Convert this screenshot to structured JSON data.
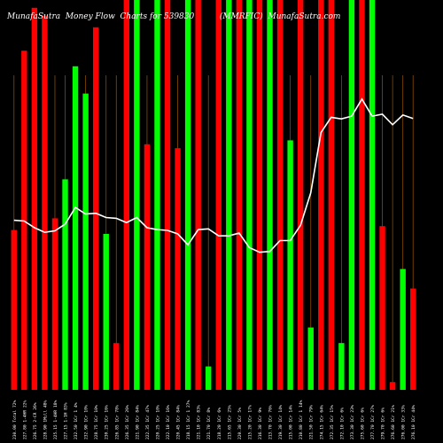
{
  "chart_data": {
    "type": "bar",
    "title_left": "MunafaSutra  Money Flow  Charts for 539830",
    "title_right": "(MMRFIC)  MunafaSutra.com",
    "colors": {
      "up": "#00ff00",
      "down": "#ff0000",
      "grid": "#8a4a00",
      "line": "#ffffff",
      "label": "#ffffff"
    },
    "y_range": [
      0,
      100
    ],
    "categories": [
      "230.00 Total 72%",
      "227.80 1-4HR 22%",
      "226.75 2-CR 26%",
      "228.90 1Mill 48%",
      "225.15 1-4HR 18%",
      "227.15 1-1H 83%",
      "232.50 1Cr 1 4%",
      "232.90 1Cr 10%",
      "228.75 1Cr 10%",
      "230.25 1Cr 16%",
      "226.85 1Cr 78%",
      "226.35 1Cr 26%",
      "221.90 1Cr 84%",
      "222.35 1Cr 47%",
      "220.25 1Cr 10%",
      "222.10 1Cr 16%",
      "220.45 1Cr 84%",
      "218.15 1Cr 1 27%",
      "221.10 1Cr 83%",
      "221.70 1Cr 8%",
      "218.20 1Cr 6%",
      "215.65 1Cr 25%",
      "220.30 1Cr 5%",
      "215.20 1Cr 17%",
      "216.30 1Cr 9%",
      "213.70 1Cr 76%",
      "219.30 1Cr 14%",
      "215.00 1Cr 14%",
      "210.80 1Cr 1 14%",
      "221.50 1Cr 79%",
      "274.15 1Cr 64%",
      "272.35 1Cr 15%",
      "272.10 1Cr 6%",
      "273.30 1Cr 23%",
      "275.60 1Cr 6%",
      "277.70 1Cr 27%",
      "279.70 1Cr 6%",
      "276.60 1Cr 21%",
      "276.00 1Cr 33%",
      "276.10 1Cr 44%"
    ],
    "bars": [
      {
        "value": 41,
        "dir": "down"
      },
      {
        "value": 87,
        "dir": "down"
      },
      {
        "value": 98,
        "dir": "down"
      },
      {
        "value": 96,
        "dir": "down"
      },
      {
        "value": 44,
        "dir": "down"
      },
      {
        "value": 54,
        "dir": "up"
      },
      {
        "value": 83,
        "dir": "up"
      },
      {
        "value": 76,
        "dir": "up"
      },
      {
        "value": 93,
        "dir": "down"
      },
      {
        "value": 40,
        "dir": "up"
      },
      {
        "value": 12,
        "dir": "down"
      },
      {
        "value": 100,
        "dir": "down"
      },
      {
        "value": 100,
        "dir": "up"
      },
      {
        "value": 63,
        "dir": "down"
      },
      {
        "value": 100,
        "dir": "up"
      },
      {
        "value": 100,
        "dir": "down"
      },
      {
        "value": 62,
        "dir": "down"
      },
      {
        "value": 100,
        "dir": "up"
      },
      {
        "value": 100,
        "dir": "down"
      },
      {
        "value": 6,
        "dir": "up"
      },
      {
        "value": 100,
        "dir": "down"
      },
      {
        "value": 100,
        "dir": "up"
      },
      {
        "value": 100,
        "dir": "down"
      },
      {
        "value": 100,
        "dir": "up"
      },
      {
        "value": 100,
        "dir": "down"
      },
      {
        "value": 100,
        "dir": "up"
      },
      {
        "value": 100,
        "dir": "down"
      },
      {
        "value": 64,
        "dir": "up"
      },
      {
        "value": 100,
        "dir": "down"
      },
      {
        "value": 16,
        "dir": "up"
      },
      {
        "value": 100,
        "dir": "down"
      },
      {
        "value": 100,
        "dir": "down"
      },
      {
        "value": 12,
        "dir": "up"
      },
      {
        "value": 100,
        "dir": "up"
      },
      {
        "value": 100,
        "dir": "down"
      },
      {
        "value": 100,
        "dir": "up"
      },
      {
        "value": 42,
        "dir": "down"
      },
      {
        "value": 2,
        "dir": "down"
      },
      {
        "value": 31,
        "dir": "up"
      },
      {
        "value": 26,
        "dir": "down"
      }
    ],
    "price_line": [
      43.5,
      43.3,
      41.6,
      40.4,
      40.8,
      42.5,
      46.8,
      45.1,
      45.3,
      44.2,
      44.0,
      42.9,
      44.2,
      41.6,
      41.1,
      40.9,
      40.0,
      37.2,
      41.1,
      41.3,
      39.5,
      39.5,
      40.2,
      36.5,
      35.3,
      35.5,
      38.3,
      38.3,
      42.2,
      50.5,
      66.0,
      69.9,
      69.5,
      70.2,
      74.6,
      70.2,
      70.7,
      68.0,
      70.5,
      69.6
    ]
  }
}
